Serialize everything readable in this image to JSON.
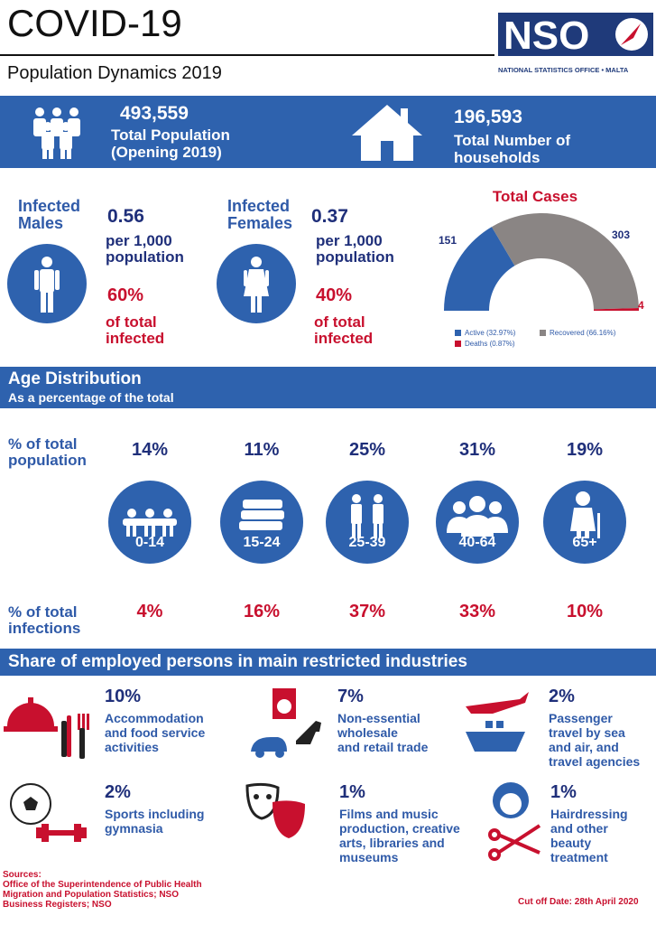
{
  "header": {
    "title": "COVID-19",
    "subtitle": "Population Dynamics 2019",
    "logo_text": "NSO",
    "logo_caption": "NATIONAL STATISTICS OFFICE • MALTA"
  },
  "summary": {
    "population_value": "493,559",
    "population_label1": "Total Population",
    "population_label2": "(Opening 2019)",
    "households_value": "196,593",
    "households_label1": "Total Number of",
    "households_label2": "households"
  },
  "infected": {
    "males_label1": "Infected",
    "males_label2": "Males",
    "males_rate": "0.56",
    "males_per1": "per 1,000",
    "males_per2": "population",
    "males_share": "60%",
    "males_share_l1": "of total",
    "males_share_l2": "infected",
    "females_label1": "Infected",
    "females_label2": "Females",
    "females_rate": "0.37",
    "females_per1": "per 1,000",
    "females_per2": "population",
    "females_share": "40%",
    "females_share_l1": "of total",
    "females_share_l2": "infected"
  },
  "age": {
    "title": "Age Distribution",
    "subtitle": "As a percentage of the total",
    "pop_label1": "% of total",
    "pop_label2": "population",
    "inf_label1": "% of total",
    "inf_label2": "infections"
  },
  "employment": {
    "title": "Share of employed persons in main restricted industries",
    "items": [
      {
        "pct": "10%",
        "l1": "Accommodation",
        "l2": "and food service",
        "l3": "activities",
        "l4": ""
      },
      {
        "pct": "7%",
        "l1": "Non-essential",
        "l2": "wholesale",
        "l3": "and retail trade",
        "l4": ""
      },
      {
        "pct": "2%",
        "l1": "Passenger",
        "l2": "travel by sea",
        "l3": "and air, and",
        "l4": "travel agencies"
      },
      {
        "pct": "2%",
        "l1": "Sports including",
        "l2": "gymnasia",
        "l3": "",
        "l4": ""
      },
      {
        "pct": "1%",
        "l1": "Films and music",
        "l2": "production, creative",
        "l3": "arts, libraries and",
        "l4": "museums"
      },
      {
        "pct": "1%",
        "l1": "Hairdressing",
        "l2": "and other",
        "l3": "beauty",
        "l4": "treatment"
      }
    ]
  },
  "footer": {
    "sources_title": "Sources:",
    "s1": "Office of the Superintendence of Public Health",
    "s2": "Migration and Population Statistics; NSO",
    "s3": "Business Registers; NSO",
    "cutoff": "Cut off Date: 28th April 2020"
  },
  "colors": {
    "blue": "#2e62ae",
    "navy": "#1f2f7a",
    "red": "#c8102e",
    "grey": "#8a8584"
  },
  "chart_data": [
    {
      "type": "pie",
      "title": "Total Cases",
      "categories": [
        "Active (32.97%)",
        "Recovered (66.16%)",
        "Deaths (0.87%)"
      ],
      "values": [
        151,
        303,
        4
      ],
      "value_labels": [
        "151",
        "303",
        "4"
      ],
      "colors": [
        "#2e62ae",
        "#8a8584",
        "#c8102e"
      ],
      "legend_position": "bottom"
    },
    {
      "type": "table",
      "categories": [
        "0-14",
        "15-24",
        "25-39",
        "40-64",
        "65+"
      ],
      "series": [
        {
          "name": "% of total population",
          "values": [
            14,
            11,
            25,
            31,
            19
          ],
          "labels": [
            "14%",
            "11%",
            "25%",
            "31%",
            "19%"
          ]
        },
        {
          "name": "% of total infections",
          "values": [
            4,
            16,
            37,
            33,
            10
          ],
          "labels": [
            "4%",
            "16%",
            "37%",
            "33%",
            "10%"
          ]
        }
      ]
    }
  ]
}
